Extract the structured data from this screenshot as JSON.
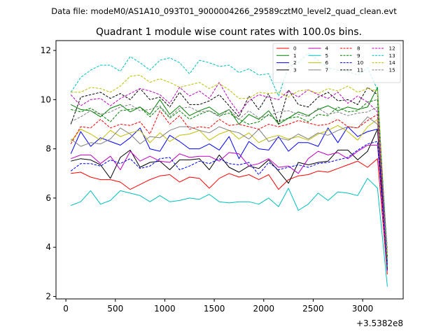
{
  "chart_data": {
    "type": "line",
    "suptitle": "Data file: modeM0/AS1A10_093T01_9000004266_29589cztM0_level2_quad_clean.evt",
    "title": "Quadrant 1 module wise count rates with 100.0s bins.",
    "xlabel": "",
    "ylabel": "",
    "x_offset_label": "+3.5382e8",
    "xlim": [
      -100,
      3410
    ],
    "ylim": [
      1.9,
      12.4
    ],
    "xticks": [
      0,
      500,
      1000,
      1500,
      2000,
      2500,
      3000
    ],
    "yticks": [
      2,
      4,
      6,
      8,
      10,
      12
    ],
    "legend_position": "top-right",
    "x": [
      50,
      150,
      250,
      350,
      450,
      550,
      650,
      750,
      850,
      950,
      1050,
      1150,
      1250,
      1350,
      1450,
      1550,
      1650,
      1750,
      1850,
      1950,
      2050,
      2150,
      2250,
      2350,
      2450,
      2550,
      2650,
      2750,
      2850,
      2950,
      3050,
      3150,
      3250
    ],
    "series": [
      {
        "name": "0",
        "color": "#ff0000",
        "style": "solid",
        "values": [
          7.0,
          7.05,
          6.85,
          6.75,
          6.75,
          6.65,
          6.35,
          6.55,
          6.75,
          6.9,
          6.95,
          6.65,
          6.85,
          6.8,
          6.4,
          6.8,
          7.0,
          6.85,
          6.95,
          6.75,
          6.95,
          6.35,
          6.75,
          6.9,
          6.95,
          7.1,
          7.05,
          7.2,
          7.35,
          7.5,
          7.25,
          7.6,
          2.9
        ]
      },
      {
        "name": "1",
        "color": "#008000",
        "style": "solid",
        "values": [
          9.8,
          9.6,
          9.55,
          9.3,
          9.65,
          9.8,
          9.5,
          9.7,
          9.4,
          10.0,
          9.4,
          9.75,
          9.35,
          9.55,
          9.7,
          9.4,
          9.6,
          9.0,
          9.4,
          9.2,
          9.55,
          9.0,
          9.25,
          9.5,
          9.35,
          9.6,
          9.75,
          9.55,
          9.7,
          9.6,
          9.7,
          10.5,
          3.2
        ]
      },
      {
        "name": "2",
        "color": "#0000ff",
        "style": "solid",
        "values": [
          7.8,
          8.7,
          8.1,
          8.45,
          8.3,
          8.15,
          8.45,
          8.85,
          8.0,
          7.9,
          8.55,
          8.3,
          8.0,
          8.0,
          8.2,
          7.95,
          8.5,
          7.6,
          8.3,
          8.0,
          7.95,
          8.5,
          7.9,
          8.25,
          8.25,
          8.1,
          8.85,
          8.25,
          8.9,
          8.5,
          8.7,
          8.8,
          3.4
        ]
      },
      {
        "name": "3",
        "color": "#000000",
        "style": "solid",
        "values": [
          7.5,
          7.6,
          7.55,
          7.35,
          6.8,
          7.65,
          7.95,
          7.25,
          7.45,
          7.5,
          7.15,
          7.55,
          7.55,
          7.6,
          7.15,
          7.75,
          7.25,
          7.05,
          7.3,
          7.2,
          7.55,
          7.1,
          6.6,
          7.45,
          7.35,
          7.45,
          7.5,
          7.95,
          7.95,
          7.55,
          7.9,
          8.8,
          3.1
        ]
      },
      {
        "name": "4",
        "color": "#bf00bf",
        "style": "solid",
        "values": [
          7.6,
          7.75,
          7.75,
          7.4,
          7.7,
          7.15,
          7.9,
          7.5,
          7.7,
          7.5,
          7.45,
          7.8,
          7.65,
          7.7,
          7.7,
          7.5,
          7.85,
          7.8,
          7.3,
          7.4,
          7.6,
          7.25,
          7.3,
          7.0,
          7.6,
          7.9,
          7.75,
          7.85,
          7.6,
          7.9,
          8.15,
          8.15,
          3.3
        ]
      },
      {
        "name": "5",
        "color": "#00bfbf",
        "style": "solid",
        "values": [
          5.7,
          5.85,
          6.3,
          5.75,
          5.9,
          6.3,
          6.2,
          6.1,
          5.85,
          6.1,
          5.85,
          5.9,
          6.0,
          5.95,
          6.15,
          5.85,
          5.8,
          5.85,
          5.85,
          5.75,
          6.0,
          5.65,
          6.4,
          5.5,
          5.75,
          6.2,
          5.9,
          6.25,
          6.2,
          6.1,
          6.8,
          6.4,
          2.4
        ]
      },
      {
        "name": "6",
        "color": "#bfbf00",
        "style": "solid",
        "values": [
          8.3,
          8.8,
          8.6,
          8.35,
          8.75,
          8.5,
          8.65,
          8.75,
          8.25,
          8.65,
          8.3,
          8.55,
          8.6,
          8.75,
          8.35,
          8.6,
          8.75,
          8.4,
          8.65,
          8.25,
          8.45,
          8.55,
          8.4,
          8.5,
          8.35,
          8.6,
          8.75,
          8.95,
          8.7,
          8.35,
          8.9,
          9.2,
          3.5
        ]
      },
      {
        "name": "7",
        "color": "#808080",
        "style": "solid",
        "values": [
          8.4,
          8.1,
          8.25,
          8.2,
          8.4,
          8.85,
          8.6,
          8.2,
          8.5,
          8.45,
          8.75,
          8.9,
          8.9,
          8.75,
          8.65,
          8.9,
          8.75,
          8.65,
          8.4,
          8.8,
          8.3,
          8.45,
          8.35,
          8.6,
          8.4,
          8.65,
          8.55,
          8.75,
          8.9,
          8.85,
          9.3,
          9.0,
          3.6
        ]
      },
      {
        "name": "8",
        "color": "#ff0000",
        "style": "dashed",
        "values": [
          8.2,
          8.9,
          8.85,
          9.2,
          8.85,
          9.0,
          8.95,
          9.1,
          8.6,
          9.55,
          9.0,
          9.35,
          8.8,
          8.9,
          8.85,
          9.2,
          8.95,
          9.0,
          8.9,
          8.8,
          9.0,
          8.9,
          9.0,
          9.15,
          9.05,
          8.95,
          9.0,
          9.2,
          8.9,
          8.85,
          9.15,
          9.4,
          3.3
        ]
      },
      {
        "name": "9",
        "color": "#008000",
        "style": "dashed",
        "values": [
          9.6,
          9.5,
          9.65,
          9.4,
          9.1,
          9.55,
          9.6,
          9.7,
          9.3,
          9.7,
          9.25,
          9.55,
          9.2,
          9.4,
          9.55,
          9.35,
          9.45,
          9.2,
          9.0,
          9.1,
          9.4,
          9.1,
          9.25,
          9.3,
          9.1,
          9.4,
          9.35,
          9.7,
          9.5,
          9.55,
          9.9,
          10.0,
          3.4
        ]
      },
      {
        "name": "10",
        "color": "#0000ff",
        "style": "dashed",
        "values": [
          7.1,
          7.4,
          7.4,
          7.3,
          7.55,
          7.4,
          7.6,
          7.2,
          7.3,
          7.6,
          7.65,
          7.15,
          7.3,
          7.5,
          7.4,
          7.6,
          7.4,
          7.35,
          7.45,
          6.95,
          7.45,
          7.15,
          7.25,
          7.35,
          7.25,
          7.4,
          7.45,
          7.55,
          7.65,
          7.95,
          8.2,
          8.3,
          3.0
        ]
      },
      {
        "name": "11",
        "color": "#000000",
        "style": "dashed",
        "values": [
          9.0,
          10.1,
          10.2,
          10.3,
          10.05,
          10.25,
          10.0,
          10.45,
          10.0,
          10.1,
          9.7,
          10.3,
          9.8,
          9.8,
          9.95,
          10.2,
          9.75,
          9.3,
          10.15,
          9.6,
          10.25,
          9.0,
          10.4,
          9.8,
          9.7,
          10.1,
          10.3,
          9.95,
          10.0,
          9.8,
          10.5,
          10.2,
          3.6
        ]
      },
      {
        "name": "12",
        "color": "#bf00bf",
        "style": "dashed",
        "values": [
          10.2,
          9.75,
          10.0,
          10.05,
          9.75,
          10.05,
          10.25,
          10.45,
          10.35,
          10.2,
          9.85,
          10.5,
          10.15,
          10.35,
          10.05,
          10.7,
          10.0,
          9.45,
          9.95,
          10.2,
          10.1,
          10.0,
          10.35,
          10.1,
          10.4,
          10.2,
          10.05,
          10.3,
          9.85,
          10.15,
          9.9,
          9.5,
          3.3
        ]
      },
      {
        "name": "13",
        "color": "#00bfbf",
        "style": "dashed",
        "values": [
          10.3,
          10.9,
          11.2,
          11.4,
          11.4,
          11.15,
          11.75,
          11.5,
          11.2,
          11.6,
          11.7,
          11.5,
          11.05,
          11.6,
          11.5,
          11.35,
          11.4,
          11.1,
          11.25,
          11.0,
          11.05,
          10.15,
          11.35,
          11.5,
          11.9,
          11.6,
          11.3,
          11.2,
          11.15,
          11.0,
          11.3,
          10.4,
          3.2
        ]
      },
      {
        "name": "14",
        "color": "#bfbf00",
        "style": "dashed",
        "values": [
          10.3,
          10.3,
          10.5,
          10.45,
          10.3,
          10.55,
          10.95,
          11.0,
          10.7,
          10.85,
          10.7,
          10.5,
          10.6,
          10.7,
          10.45,
          10.65,
          10.4,
          10.05,
          10.05,
          10.3,
          10.25,
          10.3,
          10.1,
          10.35,
          10.4,
          10.25,
          10.45,
          10.35,
          10.55,
          10.3,
          10.45,
          10.35,
          3.6
        ]
      },
      {
        "name": "15",
        "color": "#808080",
        "style": "dashed",
        "values": [
          9.1,
          9.3,
          9.55,
          9.4,
          9.5,
          9.7,
          9.8,
          9.55,
          9.6,
          9.75,
          9.3,
          9.65,
          9.7,
          9.5,
          9.55,
          9.3,
          9.6,
          9.2,
          9.55,
          9.25,
          9.35,
          9.5,
          9.55,
          9.4,
          9.3,
          9.65,
          9.4,
          9.5,
          9.35,
          9.45,
          9.5,
          9.7,
          3.9
        ]
      }
    ]
  }
}
